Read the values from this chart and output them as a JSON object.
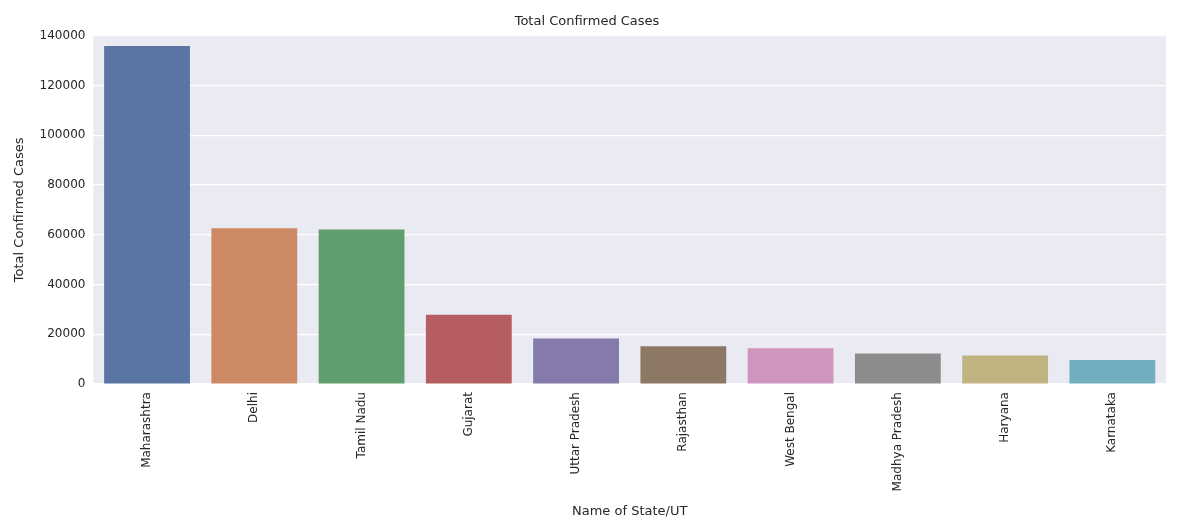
{
  "chart_data": {
    "type": "bar",
    "title": "Total Confirmed Cases",
    "xlabel": "Name of State/UT",
    "ylabel": "Total Confirmed Cases",
    "categories": [
      "Maharashtra",
      "Delhi",
      "Tamil Nadu",
      "Gujarat",
      "Uttar Pradesh",
      "Rajasthan",
      "West Bengal",
      "Madhya Pradesh",
      "Haryana",
      "Karnataka"
    ],
    "values": [
      135800,
      62600,
      62100,
      27800,
      18300,
      15200,
      14400,
      12300,
      11500,
      9700
    ],
    "colors": [
      "#5975a4",
      "#cc8963",
      "#5f9e6e",
      "#b55d60",
      "#857aab",
      "#8d7866",
      "#d095bf",
      "#8c8c8c",
      "#c1b37f",
      "#71aec0"
    ],
    "ylim": [
      0,
      140000
    ],
    "yticks": [
      0,
      20000,
      40000,
      60000,
      80000,
      100000,
      120000,
      140000
    ],
    "grid": "y",
    "legend": false
  }
}
